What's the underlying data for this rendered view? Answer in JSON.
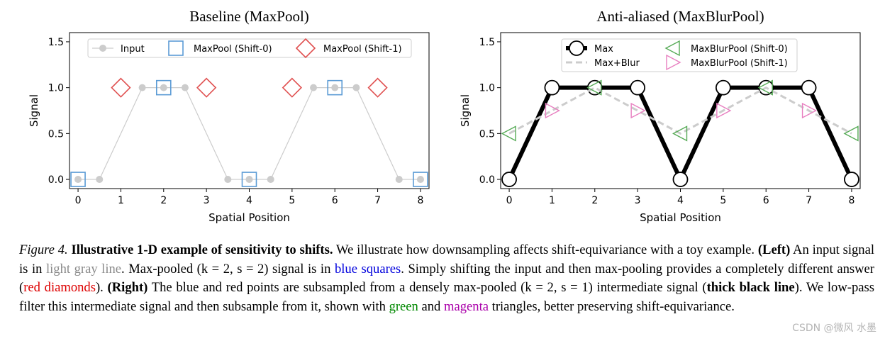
{
  "chart_data": [
    {
      "type": "line",
      "title": "Baseline (MaxPool)",
      "xlabel": "Spatial Position",
      "ylabel": "Signal",
      "xlim": [
        -0.2,
        8.2
      ],
      "ylim": [
        -0.1,
        1.6
      ],
      "xticks": [
        "0",
        "1",
        "2",
        "3",
        "4",
        "5",
        "6",
        "7",
        "8"
      ],
      "yticks": [
        "0.0",
        "0.5",
        "1.0",
        "1.5"
      ],
      "legend_position": "top",
      "series": [
        {
          "name": "Input",
          "style": "line-circle",
          "color": "#cccccc",
          "x": [
            0,
            0.5,
            1.5,
            2,
            2.5,
            3.5,
            4,
            4.5,
            5.5,
            6,
            6.5,
            7.5,
            8
          ],
          "y": [
            0,
            0,
            1,
            1,
            1,
            0,
            0,
            0,
            1,
            1,
            1,
            0,
            0
          ]
        },
        {
          "name": "MaxPool (Shift-0)",
          "style": "square",
          "color": "#5b9bd5",
          "x": [
            0,
            2,
            4,
            6,
            8
          ],
          "y": [
            0,
            1,
            0,
            1,
            0
          ]
        },
        {
          "name": "MaxPool (Shift-1)",
          "style": "diamond",
          "color": "#e05050",
          "x": [
            1,
            3,
            5,
            7
          ],
          "y": [
            1,
            1,
            1,
            1
          ]
        }
      ]
    },
    {
      "type": "line",
      "title": "Anti-aliased (MaxBlurPool)",
      "xlabel": "Spatial Position",
      "ylabel": "Signal",
      "xlim": [
        -0.2,
        8.2
      ],
      "ylim": [
        -0.1,
        1.6
      ],
      "xticks": [
        "0",
        "1",
        "2",
        "3",
        "4",
        "5",
        "6",
        "7",
        "8"
      ],
      "yticks": [
        "0.0",
        "0.5",
        "1.0",
        "1.5"
      ],
      "legend_position": "top",
      "series": [
        {
          "name": "Max",
          "style": "thick-line-circle",
          "color": "#000000",
          "x": [
            0,
            1,
            2,
            3,
            4,
            5,
            6,
            7,
            8
          ],
          "y": [
            0,
            1,
            1,
            1,
            0,
            1,
            1,
            1,
            0
          ]
        },
        {
          "name": "Max+Blur",
          "style": "dashed-line",
          "color": "#cccccc",
          "x": [
            0,
            1,
            2,
            3,
            4,
            5,
            6,
            7,
            8
          ],
          "y": [
            0.5,
            0.75,
            1,
            0.75,
            0.5,
            0.75,
            1,
            0.75,
            0.5
          ]
        },
        {
          "name": "MaxBlurPool (Shift-0)",
          "style": "triangle-left",
          "color": "#55aa55",
          "x": [
            0,
            2,
            4,
            6,
            8
          ],
          "y": [
            0.5,
            1,
            0.5,
            1,
            0.5
          ]
        },
        {
          "name": "MaxBlurPool (Shift-1)",
          "style": "triangle-right",
          "color": "#e87fc0",
          "x": [
            1,
            3,
            5,
            7
          ],
          "y": [
            0.75,
            0.75,
            0.75,
            0.75
          ]
        }
      ]
    }
  ],
  "caption": {
    "figure_label": "Figure 4.",
    "title": "Illustrative 1-D example of sensitivity to shifts.",
    "sentence_1": " We illustrate how downsampling affects shift-equivariance with a toy example. ",
    "left_label": "(Left)",
    "left_text_1": " An input signal is in ",
    "light_gray_line": "light gray line",
    "left_text_2": ". Max-pooled (k = 2, s = 2) signal is in ",
    "blue_squares": "blue squares",
    "left_text_3": ". Simply shifting the input and then max-pooling provides a completely different answer (",
    "red_diamonds": "red diamonds",
    "left_text_4": "). ",
    "right_label": "(Right)",
    "right_text_1": " The blue and red points are subsampled from a densely max-pooled (k = 2, s = 1) intermediate signal (",
    "thick_black_line": "thick black line",
    "right_text_2": "). We low-pass filter this intermediate signal and then subsample from it, shown with ",
    "green": "green",
    "and": " and ",
    "magenta": "magenta",
    "right_text_3": " triangles, better preserving shift-equivariance."
  },
  "watermark": "CSDN @微风 水墨"
}
